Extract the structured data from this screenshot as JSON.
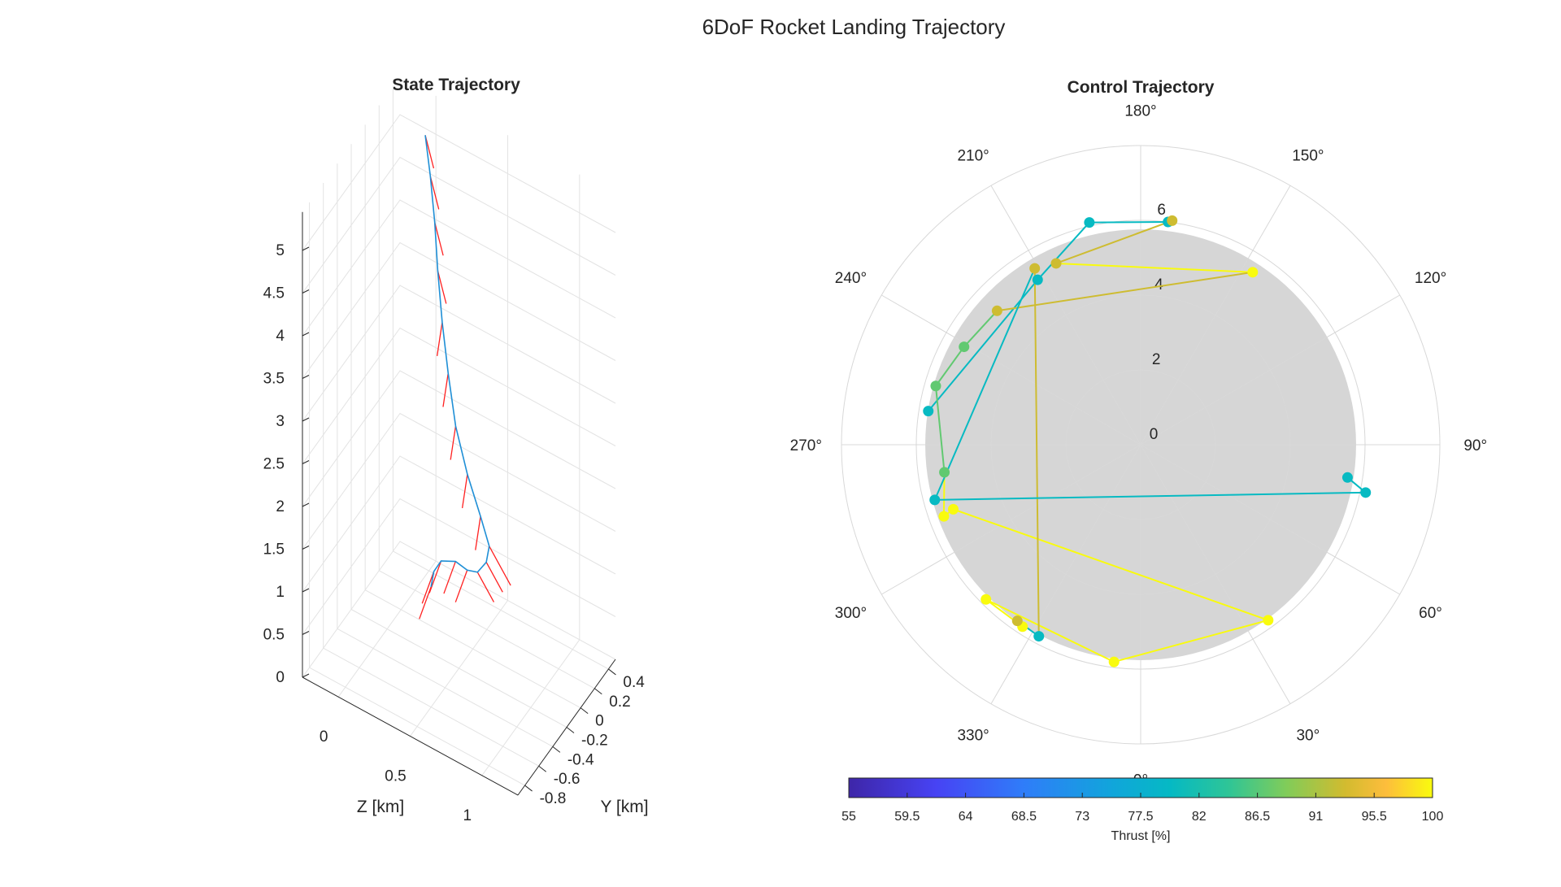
{
  "figure": {
    "title": "6DoF Rocket Landing Trajectory"
  },
  "state_plot": {
    "title": "State Trajectory",
    "xlabel": "Z [km]",
    "ylabel": "Y [km]",
    "vertical_ticks": [
      "5",
      "4.5",
      "4",
      "3.5",
      "3",
      "2.5",
      "2",
      "1.5",
      "1",
      "0.5",
      "0"
    ],
    "z_ticks": [
      "0",
      "0.5",
      "1"
    ],
    "y_ticks": [
      "0.4",
      "0.2",
      "0",
      "-0.2",
      "-0.4",
      "-0.6",
      "-0.8"
    ]
  },
  "control_plot": {
    "title": "Control Trajectory",
    "angle_ticks": [
      "0°",
      "30°",
      "60°",
      "90°",
      "120°",
      "150°",
      "180°",
      "210°",
      "240°",
      "270°",
      "300°",
      "330°"
    ],
    "radial_ticks": [
      "0",
      "2",
      "4",
      "6"
    ],
    "colorbar": {
      "label": "Thrust [%]",
      "ticks": [
        "55",
        "59.5",
        "64",
        "68.5",
        "73",
        "77.5",
        "82",
        "86.5",
        "91",
        "95.5",
        "100"
      ]
    }
  },
  "colors": {
    "trajectory": "#1f8fd6",
    "thrust_vector": "#ff2020",
    "shaded_limit": "#d6d6d6",
    "grid": "#e3e3e3"
  },
  "chart_data": [
    {
      "type": "line3d",
      "title": "State Trajectory",
      "xlabel": "Z [km]",
      "ylabel": "Y [km]",
      "zlim": [
        0,
        5
      ],
      "z_range": [
        -0.25,
        1.25
      ],
      "y_range": [
        -0.9,
        0.5
      ],
      "grid": true,
      "trajectory": [
        {
          "z": -0.05,
          "y": 0.45,
          "alt": 5.0
        },
        {
          "z": 0.0,
          "y": 0.42,
          "alt": 4.6
        },
        {
          "z": 0.05,
          "y": 0.38,
          "alt": 4.15
        },
        {
          "z": 0.1,
          "y": 0.32,
          "alt": 3.7
        },
        {
          "z": 0.17,
          "y": 0.24,
          "alt": 3.25
        },
        {
          "z": 0.26,
          "y": 0.14,
          "alt": 2.85
        },
        {
          "z": 0.38,
          "y": 0.0,
          "alt": 2.5
        },
        {
          "z": 0.52,
          "y": -0.12,
          "alt": 2.2
        },
        {
          "z": 0.66,
          "y": -0.22,
          "alt": 1.95
        },
        {
          "z": 0.74,
          "y": -0.26,
          "alt": 1.72
        },
        {
          "z": 0.7,
          "y": -0.22,
          "alt": 1.45
        },
        {
          "z": 0.6,
          "y": -0.14,
          "alt": 1.15
        },
        {
          "z": 0.48,
          "y": -0.04,
          "alt": 0.95
        },
        {
          "z": 0.36,
          "y": 0.04,
          "alt": 0.85
        },
        {
          "z": 0.24,
          "y": 0.08,
          "alt": 0.7
        },
        {
          "z": 0.18,
          "y": 0.1,
          "alt": 0.5
        },
        {
          "z": 0.16,
          "y": 0.1,
          "alt": 0.3
        }
      ]
    },
    {
      "type": "polar",
      "title": "Control Trajectory",
      "theta_zero": "bottom",
      "theta_direction": "counterclockwise",
      "rlim": [
        0,
        8
      ],
      "shaded_radius": 6,
      "colorbar": {
        "label": "Thrust [%]",
        "range": [
          55,
          100
        ]
      },
      "points": [
        {
          "theta": 261,
          "r": 5.75,
          "thrust": 80
        },
        {
          "theta": 212,
          "r": 5.2,
          "thrust": 80
        },
        {
          "theta": 193,
          "r": 6.1,
          "thrust": 80
        },
        {
          "theta": 173,
          "r": 6.0,
          "thrust": 80
        },
        {
          "theta": 172,
          "r": 6.05,
          "thrust": 93
        },
        {
          "theta": 205,
          "r": 5.35,
          "thrust": 93
        },
        {
          "theta": 147,
          "r": 5.5,
          "thrust": 100
        },
        {
          "theta": 227,
          "r": 5.25,
          "thrust": 93
        },
        {
          "theta": 241,
          "r": 5.4,
          "thrust": 87
        },
        {
          "theta": 254,
          "r": 5.7,
          "thrust": 87
        },
        {
          "theta": 278,
          "r": 5.3,
          "thrust": 87
        },
        {
          "theta": 290,
          "r": 5.6,
          "thrust": 100
        },
        {
          "theta": 289,
          "r": 5.3,
          "thrust": 100
        },
        {
          "theta": 36,
          "r": 5.8,
          "thrust": 100
        },
        {
          "theta": 353,
          "r": 5.85,
          "thrust": 100
        },
        {
          "theta": 315,
          "r": 5.85,
          "thrust": 100
        },
        {
          "theta": 327,
          "r": 5.8,
          "thrust": 100
        },
        {
          "theta": 325,
          "r": 5.75,
          "thrust": 93
        },
        {
          "theta": 332,
          "r": 5.8,
          "thrust": 80
        },
        {
          "theta": 211,
          "r": 5.5,
          "thrust": 93
        },
        {
          "theta": 285,
          "r": 5.7,
          "thrust": 80
        },
        {
          "theta": 78,
          "r": 6.15,
          "thrust": 80
        },
        {
          "theta": 81,
          "r": 5.6,
          "thrust": 80
        }
      ]
    }
  ]
}
